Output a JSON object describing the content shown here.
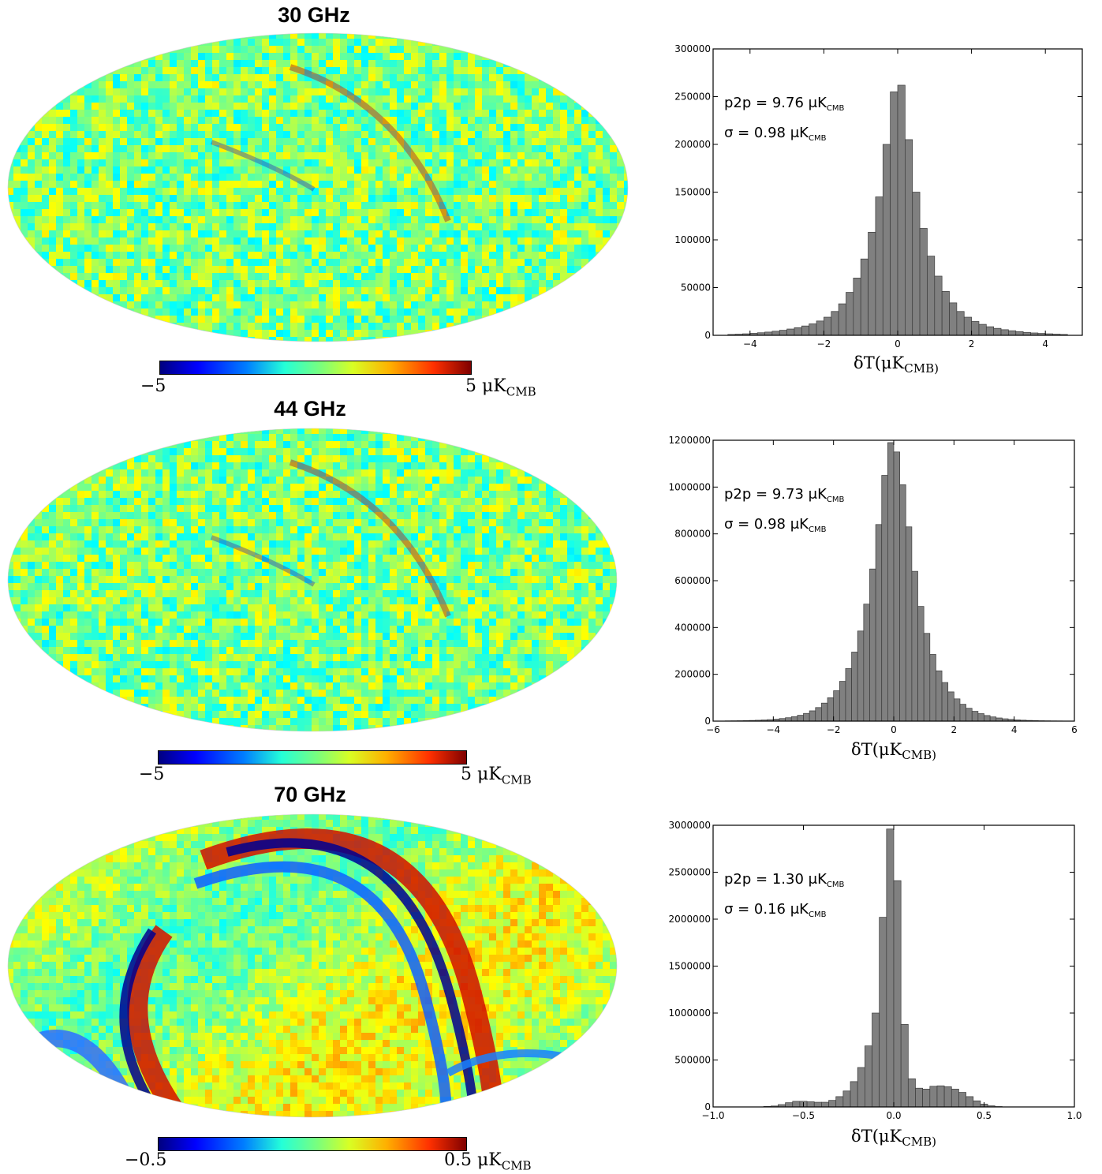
{
  "colors": {
    "bar_fill": "#808080",
    "bar_edge": "#3a3a3a"
  },
  "panels": [
    {
      "map_title": "30 GHz",
      "colorbar": {
        "min_label": "−5",
        "max_label": "5 μK",
        "max_sub": "CMB",
        "colormap": "jet",
        "range": [
          -5,
          5
        ]
      },
      "chart_data": {
        "type": "bar",
        "xlabel": "δT(μK",
        "xlabel_sub": "CMB)",
        "xlim": [
          -5,
          5
        ],
        "ylim": [
          0,
          300000
        ],
        "xticks": [
          -4,
          -2,
          0,
          2,
          4
        ],
        "yticks": [
          0,
          50000,
          100000,
          150000,
          200000,
          250000,
          300000
        ],
        "annotations": [
          "p2p = 9.76 μK",
          "σ = 0.98 μK"
        ],
        "annotation_sub": "CMB",
        "bin_width": 0.2,
        "bin_centers": [
          -4.5,
          -4.3,
          -4.1,
          -3.9,
          -3.7,
          -3.5,
          -3.3,
          -3.1,
          -2.9,
          -2.7,
          -2.5,
          -2.3,
          -2.1,
          -1.9,
          -1.7,
          -1.5,
          -1.3,
          -1.1,
          -0.9,
          -0.7,
          -0.5,
          -0.3,
          -0.1,
          0.1,
          0.3,
          0.5,
          0.7,
          0.9,
          1.1,
          1.3,
          1.5,
          1.7,
          1.9,
          2.1,
          2.3,
          2.5,
          2.7,
          2.9,
          3.1,
          3.3,
          3.5,
          3.7,
          3.9,
          4.1,
          4.3,
          4.5
        ],
        "values": [
          900,
          1200,
          1600,
          2100,
          2700,
          3400,
          4300,
          5300,
          6600,
          8000,
          9800,
          12000,
          15000,
          19000,
          25000,
          33000,
          45000,
          60000,
          80000,
          108000,
          145000,
          200000,
          255000,
          262000,
          205000,
          150000,
          112000,
          83000,
          62000,
          46000,
          34000,
          25000,
          19000,
          14500,
          11500,
          9000,
          7300,
          5900,
          4800,
          3900,
          3100,
          2500,
          2000,
          1600,
          1200,
          900
        ]
      }
    },
    {
      "map_title": "44 GHz",
      "colorbar": {
        "min_label": "−5",
        "max_label": "5 μK",
        "max_sub": "CMB",
        "colormap": "jet",
        "range": [
          -5,
          5
        ]
      },
      "chart_data": {
        "type": "bar",
        "xlabel": "δT(μK",
        "xlabel_sub": "CMB)",
        "xlim": [
          -6,
          6
        ],
        "ylim": [
          0,
          1200000
        ],
        "xticks": [
          -6,
          -4,
          -2,
          0,
          2,
          4,
          6
        ],
        "yticks": [
          0,
          200000,
          400000,
          600000,
          800000,
          1000000,
          1200000
        ],
        "annotations": [
          "p2p = 9.73 μK",
          "σ = 0.98 μK"
        ],
        "annotation_sub": "CMB",
        "bin_width": 0.2,
        "bin_centers": [
          -5.5,
          -5.3,
          -5.1,
          -4.9,
          -4.7,
          -4.5,
          -4.3,
          -4.1,
          -3.9,
          -3.7,
          -3.5,
          -3.3,
          -3.1,
          -2.9,
          -2.7,
          -2.5,
          -2.3,
          -2.1,
          -1.9,
          -1.7,
          -1.5,
          -1.3,
          -1.1,
          -0.9,
          -0.7,
          -0.5,
          -0.3,
          -0.1,
          0.1,
          0.3,
          0.5,
          0.7,
          0.9,
          1.1,
          1.3,
          1.5,
          1.7,
          1.9,
          2.1,
          2.3,
          2.5,
          2.7,
          2.9,
          3.1,
          3.3,
          3.5,
          3.7,
          3.9,
          4.1,
          4.3,
          4.5,
          4.7,
          4.9,
          5.1,
          5.3,
          5.5
        ],
        "values": [
          1000,
          1300,
          1700,
          2200,
          2900,
          3800,
          5000,
          6500,
          8500,
          11000,
          14500,
          19000,
          25000,
          33000,
          44000,
          58000,
          77000,
          100000,
          130000,
          170000,
          225000,
          295000,
          385000,
          500000,
          650000,
          840000,
          1050000,
          1190000,
          1150000,
          1010000,
          830000,
          640000,
          490000,
          375000,
          285000,
          215000,
          165000,
          125000,
          95000,
          72000,
          55000,
          42000,
          32000,
          24000,
          18000,
          13500,
          10000,
          7500,
          5500,
          4100,
          3000,
          2200,
          1600,
          1200,
          900,
          700
        ]
      }
    },
    {
      "map_title": "70 GHz",
      "colorbar": {
        "min_label": "−0.5",
        "max_label": "0.5 μK",
        "max_sub": "CMB",
        "colormap": "jet",
        "range": [
          -0.5,
          0.5
        ]
      },
      "chart_data": {
        "type": "bar",
        "xlabel": "δT(μK",
        "xlabel_sub": "CMB)",
        "xlim": [
          -1.0,
          1.0
        ],
        "ylim": [
          0,
          3000000
        ],
        "xticks": [
          -1.0,
          -0.5,
          0.0,
          0.5,
          1.0
        ],
        "yticks": [
          0,
          500000,
          1000000,
          1500000,
          2000000,
          2500000,
          3000000
        ],
        "annotations": [
          "p2p = 1.30 μK",
          "σ = 0.16 μK"
        ],
        "annotation_sub": "CMB",
        "bin_width": 0.04,
        "bin_centers": [
          -0.7,
          -0.66,
          -0.62,
          -0.58,
          -0.54,
          -0.5,
          -0.46,
          -0.42,
          -0.38,
          -0.34,
          -0.3,
          -0.26,
          -0.22,
          -0.18,
          -0.14,
          -0.1,
          -0.06,
          -0.02,
          0.02,
          0.06,
          0.1,
          0.14,
          0.18,
          0.22,
          0.26,
          0.3,
          0.34,
          0.38,
          0.42,
          0.46,
          0.5,
          0.54,
          0.58
        ],
        "values": [
          5000,
          10000,
          25000,
          45000,
          60000,
          60000,
          55000,
          50000,
          50000,
          70000,
          110000,
          170000,
          270000,
          420000,
          650000,
          1000000,
          2020000,
          2960000,
          2410000,
          880000,
          300000,
          200000,
          190000,
          220000,
          225000,
          215000,
          190000,
          155000,
          110000,
          65000,
          30000,
          12000,
          4000
        ]
      }
    }
  ]
}
